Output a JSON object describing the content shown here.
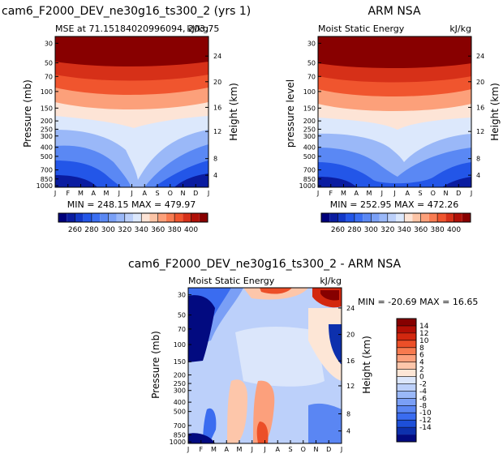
{
  "chart_data": [
    {
      "type": "heatmap",
      "id": "model",
      "title": "cam6_F2000_DEV_ne30g16_ts300_2 (yrs 1)",
      "subtitle_left": "MSE at 71.15184020996094, 203.75",
      "subtitle_right": "kJ/kg",
      "ylabel": "Pressure (mb)",
      "ylabel_right": "Height (km)",
      "x_ticks": [
        "J",
        "F",
        "M",
        "A",
        "M",
        "J",
        "J",
        "A",
        "S",
        "O",
        "N",
        "D",
        "J"
      ],
      "y_ticks": [
        "30",
        "50",
        "70",
        "100",
        "150",
        "200",
        "250",
        "300",
        "400",
        "500",
        "700",
        "850",
        "1000"
      ],
      "y_ticks_right": [
        "24",
        "20",
        "16",
        "12",
        "8",
        "4"
      ],
      "stats": "MIN = 248.15  MAX = 479.97",
      "min": 248.15,
      "max": 479.97,
      "colorbar_ticks": [
        "260",
        "280",
        "300",
        "320",
        "340",
        "360",
        "380",
        "400"
      ]
    },
    {
      "type": "heatmap",
      "id": "obs",
      "title": "ARM NSA",
      "subtitle_left": "Moist Static Energy",
      "subtitle_right": "kJ/kg",
      "ylabel": "pressure level",
      "ylabel_right": "Height (km)",
      "x_ticks": [
        "J",
        "F",
        "M",
        "A",
        "M",
        "J",
        "J",
        "A",
        "S",
        "O",
        "N",
        "D",
        "J"
      ],
      "y_ticks": [
        "30",
        "50",
        "70",
        "100",
        "150",
        "200",
        "250",
        "300",
        "400",
        "500",
        "700",
        "850",
        "1000"
      ],
      "y_ticks_right": [
        "24",
        "20",
        "16",
        "12",
        "8",
        "4"
      ],
      "stats": "MIN = 252.95  MAX = 472.26",
      "min": 252.95,
      "max": 472.26,
      "colorbar_ticks": [
        "260",
        "280",
        "300",
        "320",
        "340",
        "360",
        "380",
        "400"
      ]
    },
    {
      "type": "heatmap",
      "id": "diff",
      "title": "cam6_F2000_DEV_ne30g16_ts300_2 - ARM NSA",
      "subtitle_left": "Moist Static Energy",
      "subtitle_right": "kJ/kg",
      "ylabel": "Pressure (mb)",
      "ylabel_right": "Height (km)",
      "x_ticks": [
        "J",
        "F",
        "M",
        "A",
        "M",
        "J",
        "J",
        "A",
        "S",
        "O",
        "N",
        "D",
        "J"
      ],
      "y_ticks": [
        "30",
        "50",
        "70",
        "100",
        "150",
        "200",
        "250",
        "300",
        "400",
        "500",
        "700",
        "850",
        "1000"
      ],
      "y_ticks_right": [
        "24",
        "20",
        "16",
        "12",
        "8",
        "4"
      ],
      "stats": "MIN = -20.69  MAX =  16.65",
      "min": -20.69,
      "max": 16.65,
      "colorbar_ticks": [
        "14",
        "12",
        "10",
        "8",
        "6",
        "4",
        "2",
        "0",
        "-2",
        "-4",
        "-6",
        "-8",
        "-10",
        "-12",
        "-14"
      ]
    }
  ],
  "colors": {
    "seq": [
      "#00007a",
      "#0a1ca0",
      "#1238c8",
      "#2356e8",
      "#3a6ef2",
      "#5a88f4",
      "#7aa0f6",
      "#9ab8f8",
      "#bcd0fa",
      "#dce8fc",
      "#fde4d6",
      "#fcc4a6",
      "#fca07a",
      "#f87c52",
      "#f0552e",
      "#d63018",
      "#b01008",
      "#880000"
    ],
    "div": [
      "#860000",
      "#b30f05",
      "#d3280f",
      "#ec4f28",
      "#f77a4f",
      "#fca07c",
      "#fdc6aa",
      "#fde6d6",
      "#dbe6fb",
      "#bcd0fa",
      "#9ab8f8",
      "#7a9ff6",
      "#5a86f3",
      "#3a6cf0",
      "#1d4fd8",
      "#0d30ad",
      "#020a80"
    ]
  }
}
